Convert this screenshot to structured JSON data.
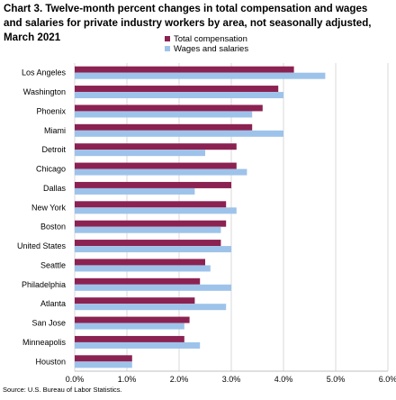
{
  "title_lines": [
    "Chart 3. Twelve-month percent changes in total compensation and wages",
    "and salaries for private industry workers by area, not seasonally adjusted,",
    "March 2021"
  ],
  "source": "Source: U.S. Bureau of Labor Statistics.",
  "chart_data": {
    "type": "bar",
    "orientation": "horizontal",
    "categories": [
      "Los Angeles",
      "Washington",
      "Phoenix",
      "Miami",
      "Detroit",
      "Chicago",
      "Dallas",
      "New York",
      "Boston",
      "United States",
      "Seattle",
      "Philadelphia",
      "Atlanta",
      "San Jose",
      "Minneapolis",
      "Houston"
    ],
    "series": [
      {
        "name": "Total compensation",
        "color": "#8b2252",
        "values": [
          4.2,
          3.9,
          3.6,
          3.4,
          3.1,
          3.1,
          3.0,
          2.9,
          2.9,
          2.8,
          2.5,
          2.4,
          2.3,
          2.2,
          2.1,
          1.1
        ]
      },
      {
        "name": "Wages and salaries",
        "color": "#9ec3ea",
        "values": [
          4.8,
          4.0,
          3.4,
          4.0,
          2.5,
          3.3,
          2.3,
          3.1,
          2.8,
          3.0,
          2.6,
          3.0,
          2.9,
          2.1,
          2.4,
          1.1
        ]
      }
    ],
    "xlim": [
      0,
      6
    ],
    "xticks": [
      "0.0%",
      "1.0%",
      "2.0%",
      "3.0%",
      "4.0%",
      "5.0%",
      "6.0%"
    ],
    "grid": "vertical",
    "legend": "top-center"
  }
}
